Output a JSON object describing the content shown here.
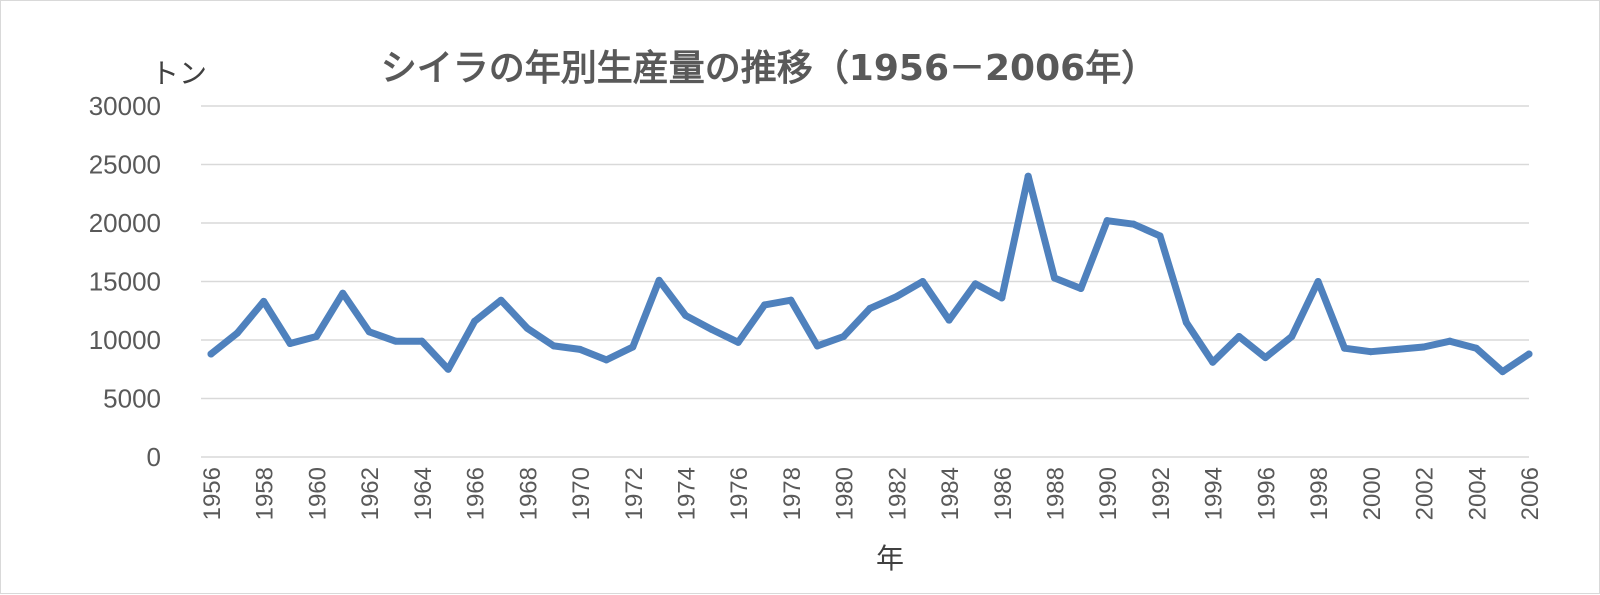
{
  "chart_data": {
    "type": "line",
    "title": "シイラの年別生産量の推移（1956－2006年）",
    "ylabel": "トン",
    "xlabel": "年",
    "ylim": [
      0,
      30000
    ],
    "yticks": [
      0,
      5000,
      10000,
      15000,
      20000,
      25000,
      30000
    ],
    "grid": true,
    "x": [
      1956,
      1957,
      1958,
      1959,
      1960,
      1961,
      1962,
      1963,
      1964,
      1965,
      1966,
      1967,
      1968,
      1969,
      1970,
      1971,
      1972,
      1973,
      1974,
      1975,
      1976,
      1977,
      1978,
      1979,
      1980,
      1981,
      1982,
      1983,
      1984,
      1985,
      1986,
      1987,
      1988,
      1989,
      1990,
      1991,
      1992,
      1993,
      1994,
      1995,
      1996,
      1997,
      1998,
      1999,
      2000,
      2001,
      2002,
      2003,
      2004,
      2005,
      2006
    ],
    "xticks": [
      "1956",
      "1958",
      "1960",
      "1962",
      "1964",
      "1966",
      "1968",
      "1970",
      "1972",
      "1974",
      "1976",
      "1978",
      "1980",
      "1982",
      "1984",
      "1986",
      "1988",
      "1990",
      "1992",
      "1994",
      "1996",
      "1998",
      "2000",
      "2002",
      "2004",
      "2006"
    ],
    "series": [
      {
        "color": "#4f81bd",
        "values": [
          8800,
          10600,
          13300,
          9700,
          10300,
          14000,
          10700,
          9900,
          9900,
          7500,
          11600,
          13400,
          11000,
          9500,
          9200,
          8300,
          9400,
          15100,
          12100,
          10900,
          9800,
          13000,
          13400,
          9500,
          10300,
          12700,
          13700,
          15000,
          11700,
          14800,
          13600,
          24000,
          15300,
          14400,
          20200,
          19900,
          18900,
          11500,
          8100,
          10300,
          8500,
          10300,
          15000,
          9300,
          9000,
          9200,
          9400,
          9900,
          9300,
          7300,
          8800
        ]
      }
    ]
  }
}
